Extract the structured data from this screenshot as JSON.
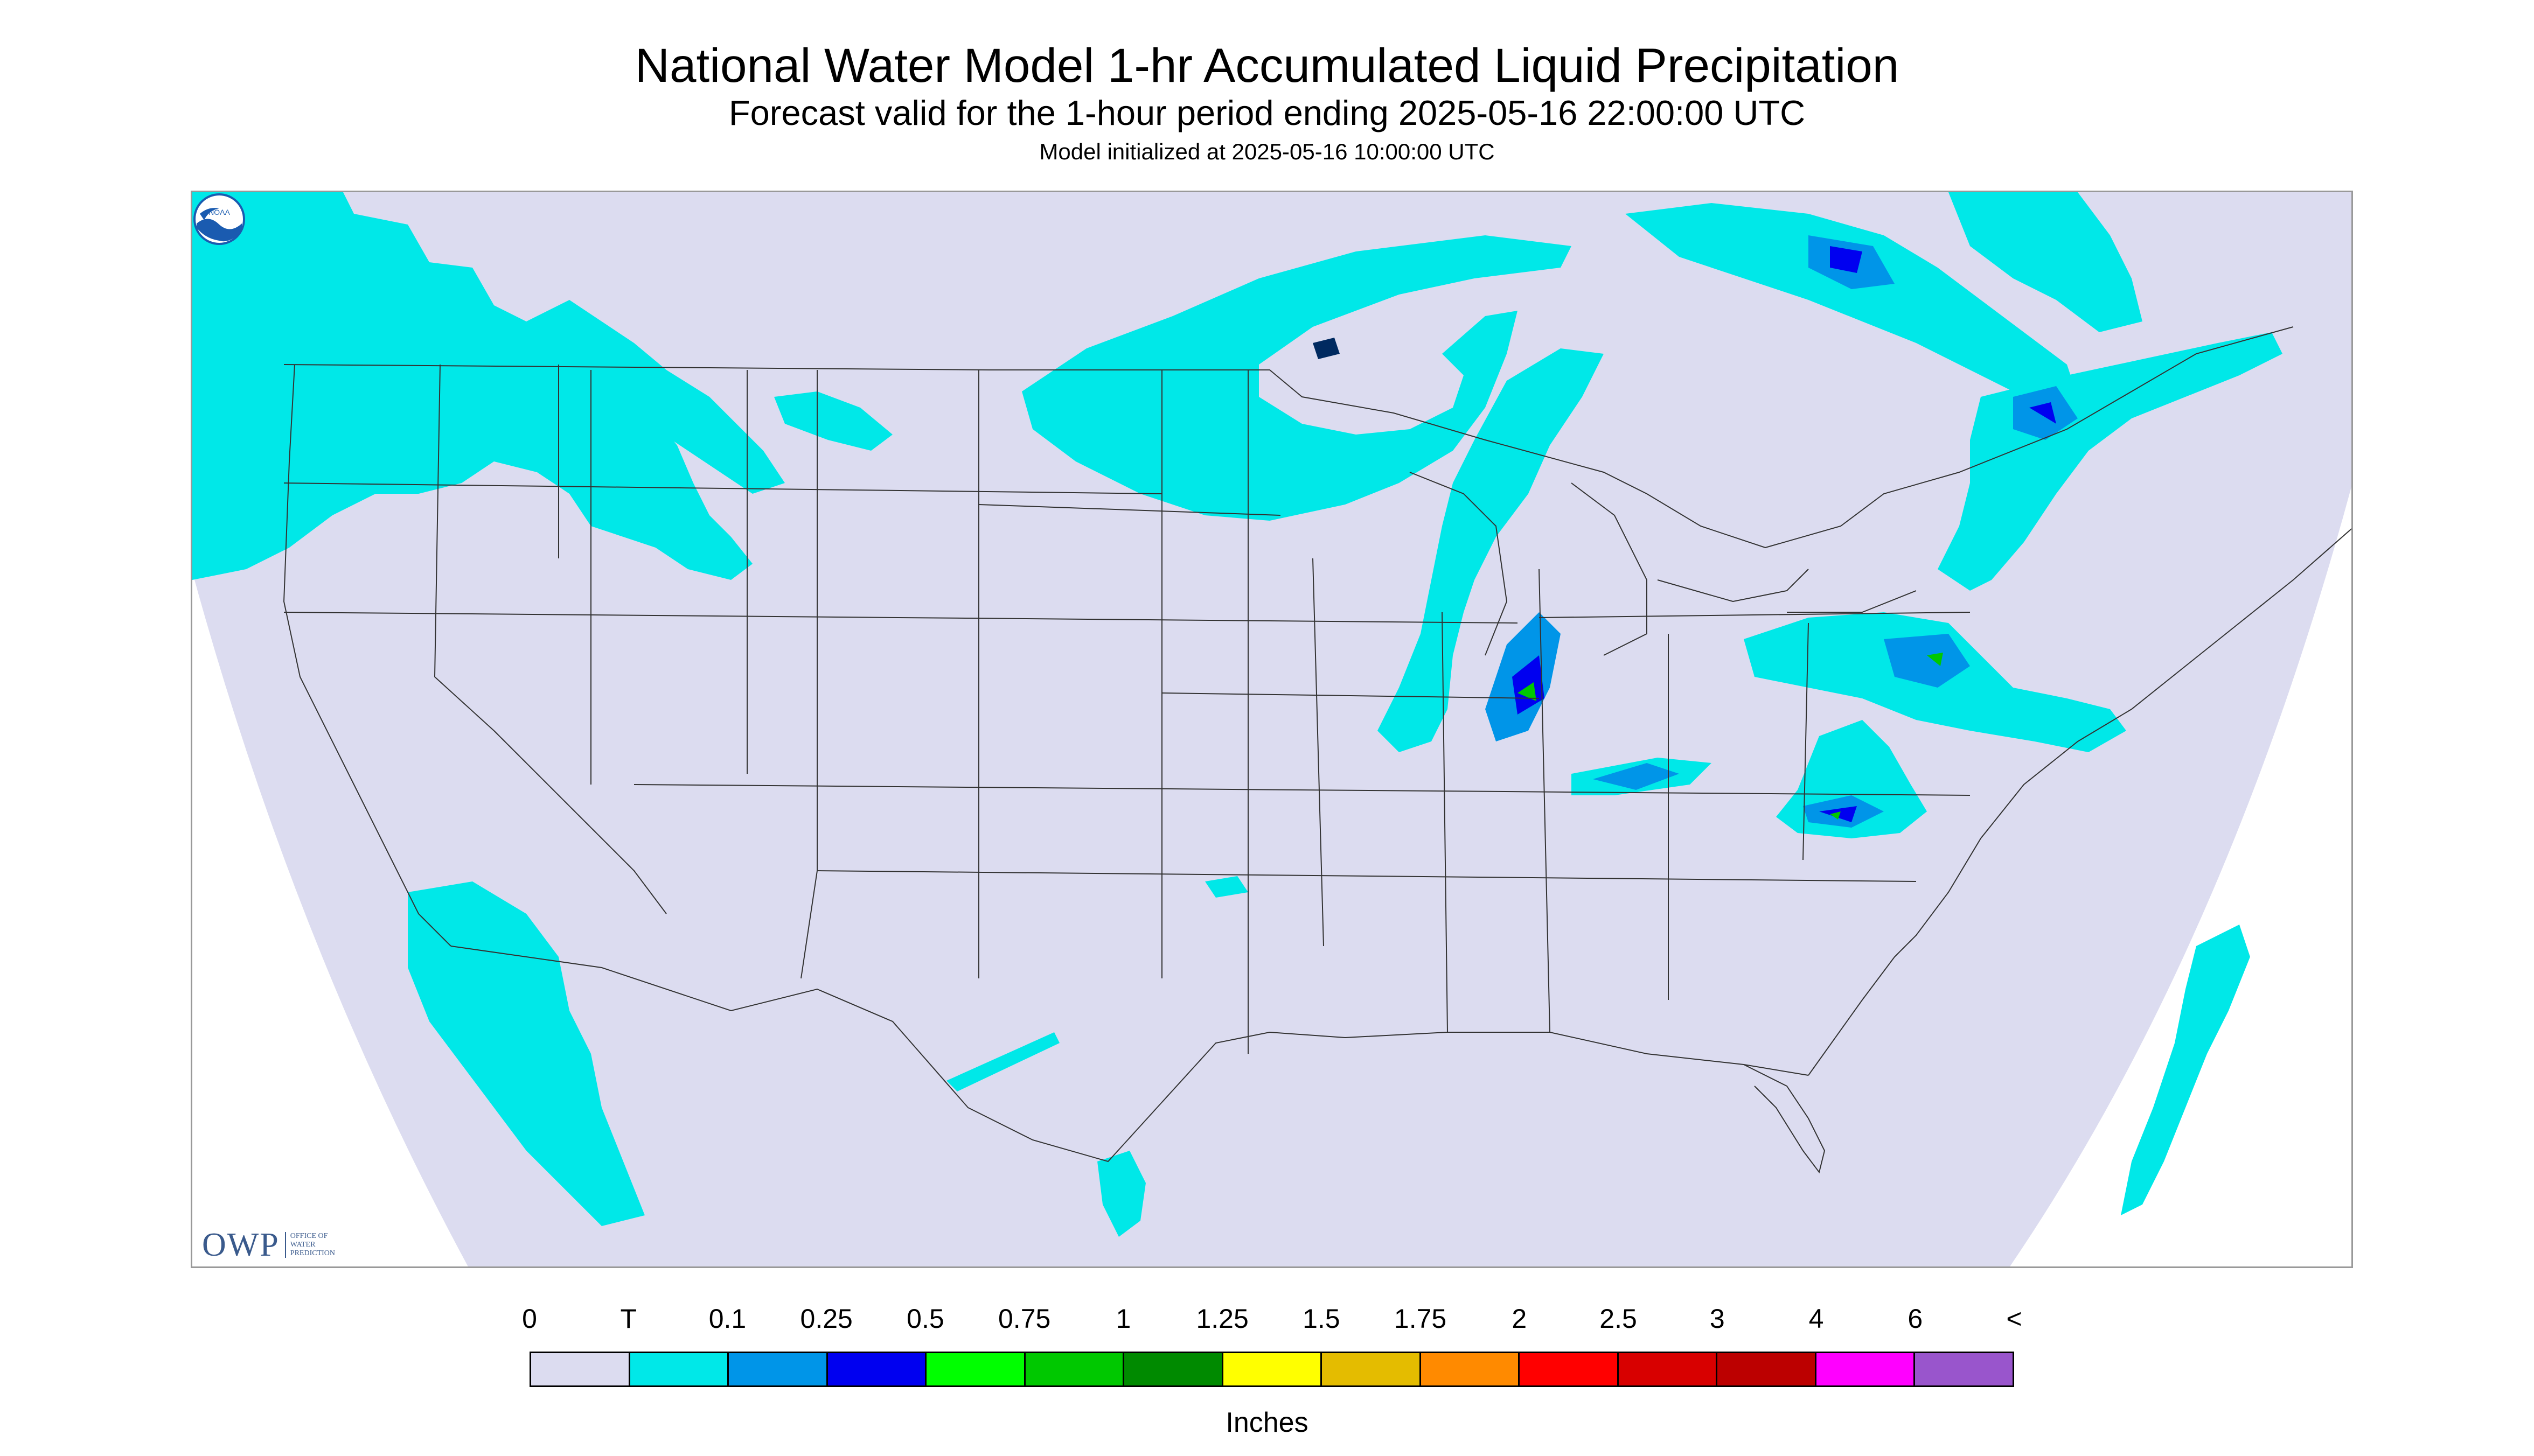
{
  "header": {
    "title": "National Water Model 1-hr Accumulated Liquid Precipitation",
    "subtitle": "Forecast valid for the 1-hour period ending 2025-05-16 22:00:00 UTC",
    "init": "Model initialized at 2025-05-16 10:00:00 UTC"
  },
  "logos": {
    "owp_text": "OWP",
    "owp_sub_1": "OFFICE OF",
    "owp_sub_2": "WATER",
    "owp_sub_3": "PREDICTION",
    "noaa_text": "NOAA"
  },
  "legend": {
    "labels": [
      "0",
      "T",
      "0.1",
      "0.25",
      "0.5",
      "0.75",
      "1",
      "1.25",
      "1.5",
      "1.75",
      "2",
      "2.5",
      "3",
      "4",
      "6",
      "<"
    ],
    "colors": [
      "#dcdcf0",
      "#00e8e8",
      "#0095e8",
      "#0000f0",
      "#00ff00",
      "#00c800",
      "#008a00",
      "#ffff00",
      "#e4bc00",
      "#ff8a00",
      "#ff0000",
      "#d80000",
      "#bc0000",
      "#ff00ff",
      "#9955cc"
    ],
    "units": "Inches"
  },
  "map": {
    "background_color": "#dcdcf0",
    "trace_color": "#00e8e8",
    "light_color": "#0095e8",
    "moderate_color": "#0000f0",
    "heavy_color": "#00c800"
  }
}
